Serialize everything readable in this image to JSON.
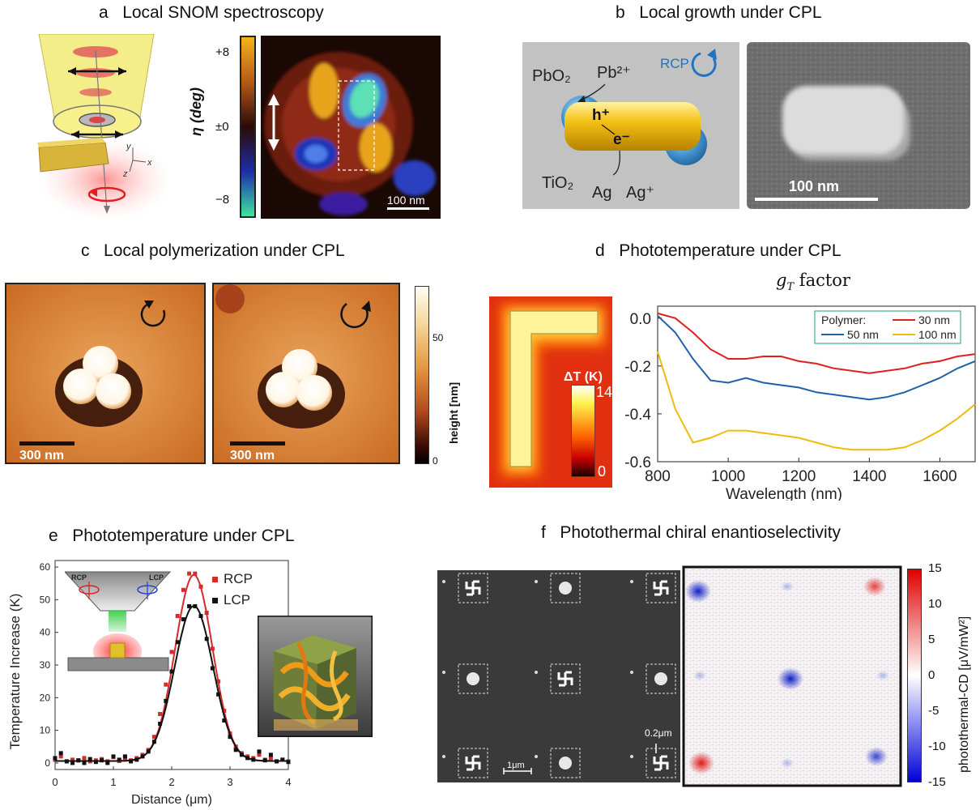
{
  "panels": {
    "a": {
      "letter": "a",
      "title": "Local SNOM spectroscopy",
      "colorbar_ticks": [
        "+8",
        "±0",
        "−8"
      ],
      "colorbar_label": "η (deg)",
      "scalebar": "100 nm",
      "axis_labels": {
        "x": "x",
        "y": "y",
        "z": "z"
      }
    },
    "b": {
      "letter": "b",
      "title": "Local growth under CPL",
      "labels": {
        "pbo2": "PbO₂",
        "pb2": "Pb²⁺",
        "rcp": "RCP",
        "hplus": "h⁺",
        "eminus": "e⁻",
        "tio2": "TiO₂",
        "ag": "Ag",
        "agplus": "Ag⁺"
      },
      "scalebar": "100 nm"
    },
    "c": {
      "letter": "c",
      "title": "Local polymerization under CPL",
      "scalebar": "300 nm",
      "colorbar_ticks": [
        "50",
        "0"
      ],
      "colorbar_label": "height [nm]"
    },
    "d": {
      "letter": "d",
      "title": "Phototemperature under CPL",
      "heatmap_label": "ΔT (K)",
      "heatmap_ticks": [
        "14",
        "0"
      ],
      "chart_title_main": "g",
      "chart_title_sub": "T",
      "chart_title_rest": " factor",
      "legend_title": "Polymer:"
    },
    "e": {
      "letter": "e",
      "title": "Phototemperature under CPL",
      "inset_labels": {
        "rcp": "RCP",
        "lcp": "LCP"
      }
    },
    "f": {
      "letter": "f",
      "title": "Photothermal chiral enantioselectivity",
      "scalebar_1": "1μm",
      "scalebar_2": "0.2μm",
      "colorbar_ticks": [
        "15",
        "10",
        "5",
        "0",
        "-5",
        "-10",
        "-15"
      ],
      "colorbar_label": "photothermal-CD [μV/mW²]"
    }
  },
  "chart_data": [
    {
      "type": "line",
      "panel": "d",
      "title": "gT factor",
      "xlabel": "Wavelength (nm)",
      "ylabel": "",
      "xlim": [
        800,
        1700
      ],
      "ylim": [
        -0.6,
        0.05
      ],
      "xticks": [
        "800",
        "1000",
        "1200",
        "1400",
        "1600"
      ],
      "yticks": [
        "0.0",
        "-0.2",
        "-0.4",
        "-0.6"
      ],
      "legend_position": "top-right",
      "x": [
        800,
        850,
        900,
        950,
        1000,
        1050,
        1100,
        1150,
        1200,
        1250,
        1300,
        1350,
        1400,
        1450,
        1500,
        1550,
        1600,
        1650,
        1700
      ],
      "series": [
        {
          "name": "30 nm",
          "color": "#e02020",
          "values": [
            0.02,
            0.0,
            -0.06,
            -0.13,
            -0.17,
            -0.17,
            -0.16,
            -0.16,
            -0.18,
            -0.19,
            -0.21,
            -0.22,
            -0.23,
            -0.22,
            -0.21,
            -0.19,
            -0.18,
            -0.16,
            -0.15
          ]
        },
        {
          "name": "50 nm",
          "color": "#1f5fa8",
          "values": [
            0.01,
            -0.06,
            -0.17,
            -0.26,
            -0.27,
            -0.25,
            -0.27,
            -0.28,
            -0.29,
            -0.31,
            -0.32,
            -0.33,
            -0.34,
            -0.33,
            -0.31,
            -0.28,
            -0.25,
            -0.21,
            -0.18
          ]
        },
        {
          "name": "100 nm",
          "color": "#f2b90f",
          "values": [
            -0.14,
            -0.38,
            -0.52,
            -0.5,
            -0.47,
            -0.47,
            -0.48,
            -0.49,
            -0.5,
            -0.52,
            -0.54,
            -0.55,
            -0.55,
            -0.55,
            -0.54,
            -0.51,
            -0.47,
            -0.42,
            -0.36
          ]
        }
      ]
    },
    {
      "type": "line",
      "panel": "e",
      "title": "",
      "xlabel": "Distance (μm)",
      "ylabel": "Temperature Increase (K)",
      "xlim": [
        0,
        4
      ],
      "ylim": [
        -2,
        62
      ],
      "xticks": [
        "0",
        "1",
        "2",
        "3",
        "4"
      ],
      "yticks": [
        "0",
        "10",
        "20",
        "30",
        "40",
        "50",
        "60"
      ],
      "legend_position": "top-right",
      "series": [
        {
          "name": "RCP",
          "color": "#d42b2b",
          "peak": 57,
          "center": 2.38,
          "sigma": 0.32,
          "points": [
            [
              0.0,
              1.0
            ],
            [
              0.1,
              2.0
            ],
            [
              0.2,
              0.5
            ],
            [
              0.3,
              1.0
            ],
            [
              0.4,
              0.8
            ],
            [
              0.5,
              1.5
            ],
            [
              0.6,
              0.5
            ],
            [
              0.7,
              0.8
            ],
            [
              0.8,
              1.2
            ],
            [
              0.9,
              0.5
            ],
            [
              1.0,
              1.8
            ],
            [
              1.1,
              0.6
            ],
            [
              1.2,
              1.6
            ],
            [
              1.3,
              0.8
            ],
            [
              1.4,
              1.5
            ],
            [
              1.5,
              2.5
            ],
            [
              1.6,
              4.0
            ],
            [
              1.7,
              8.0
            ],
            [
              1.8,
              15.0
            ],
            [
              1.9,
              24.0
            ],
            [
              2.0,
              34.0
            ],
            [
              2.1,
              45.0
            ],
            [
              2.2,
              53.0
            ],
            [
              2.3,
              58.0
            ],
            [
              2.4,
              58.0
            ],
            [
              2.5,
              54.0
            ],
            [
              2.6,
              46.0
            ],
            [
              2.7,
              35.0
            ],
            [
              2.8,
              25.0
            ],
            [
              2.9,
              16.0
            ],
            [
              3.0,
              9.0
            ],
            [
              3.1,
              5.0
            ],
            [
              3.2,
              3.0
            ],
            [
              3.3,
              2.0
            ],
            [
              3.4,
              1.5
            ],
            [
              3.5,
              2.5
            ],
            [
              3.6,
              1.0
            ],
            [
              3.7,
              1.5
            ],
            [
              3.8,
              0.5
            ],
            [
              3.9,
              1.0
            ],
            [
              4.0,
              0.5
            ]
          ]
        },
        {
          "name": "LCP",
          "color": "#111111",
          "peak": 47.5,
          "center": 2.38,
          "sigma": 0.33,
          "points": [
            [
              0.0,
              1.5
            ],
            [
              0.1,
              3.0
            ],
            [
              0.2,
              0.5
            ],
            [
              0.3,
              0.0
            ],
            [
              0.4,
              0.8
            ],
            [
              0.5,
              0.0
            ],
            [
              0.6,
              1.2
            ],
            [
              0.7,
              0.3
            ],
            [
              0.8,
              0.8
            ],
            [
              0.9,
              0.0
            ],
            [
              1.0,
              2.0
            ],
            [
              1.1,
              1.0
            ],
            [
              1.2,
              2.0
            ],
            [
              1.3,
              0.5
            ],
            [
              1.4,
              1.0
            ],
            [
              1.5,
              2.0
            ],
            [
              1.6,
              3.5
            ],
            [
              1.7,
              6.5
            ],
            [
              1.8,
              12.0
            ],
            [
              1.9,
              19.0
            ],
            [
              2.0,
              28.0
            ],
            [
              2.1,
              37.0
            ],
            [
              2.2,
              44.0
            ],
            [
              2.3,
              48.0
            ],
            [
              2.4,
              48.0
            ],
            [
              2.5,
              45.0
            ],
            [
              2.6,
              38.0
            ],
            [
              2.7,
              29.0
            ],
            [
              2.8,
              21.0
            ],
            [
              2.9,
              13.0
            ],
            [
              3.0,
              8.0
            ],
            [
              3.1,
              4.0
            ],
            [
              3.2,
              2.5
            ],
            [
              3.3,
              1.5
            ],
            [
              3.4,
              1.0
            ],
            [
              3.5,
              3.5
            ],
            [
              3.6,
              0.8
            ],
            [
              3.7,
              2.5
            ],
            [
              3.8,
              0.5
            ],
            [
              3.9,
              1.0
            ],
            [
              4.0,
              0.3
            ]
          ]
        }
      ]
    }
  ]
}
